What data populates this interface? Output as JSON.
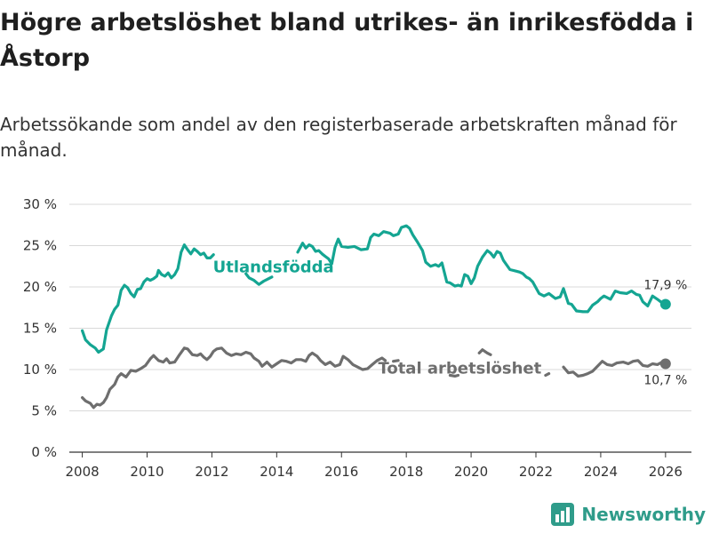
{
  "header": {
    "title": "Högre arbetslöshet bland utrikes- än inrikesfödda i Åstorp",
    "subtitle": "Arbetssökande som andel av den registerbaserade arbetskraften månad för månad."
  },
  "brand": {
    "name": "Newsworthy",
    "icon": "bar-chart-icon",
    "color": "#2f9c8a"
  },
  "chart_data": {
    "type": "line",
    "title": "Högre arbetslöshet bland utrikes- än inrikesfödda i Åstorp",
    "subtitle": "Arbetssökande som andel av den registerbaserade arbetskraften månad för månad.",
    "xlabel": "",
    "ylabel": "",
    "xlim": [
      2007.6,
      2026.8
    ],
    "ylim": [
      0,
      30
    ],
    "x_ticks": [
      2008,
      2010,
      2012,
      2014,
      2016,
      2018,
      2020,
      2022,
      2024,
      2026
    ],
    "x_tick_labels": [
      "2008",
      "2010",
      "2012",
      "2014",
      "2016",
      "2018",
      "2020",
      "2022",
      "2024",
      "2026"
    ],
    "y_ticks": [
      0,
      5,
      10,
      15,
      20,
      25,
      30
    ],
    "y_tick_labels": [
      "0 %",
      "5 %",
      "10 %",
      "15 %",
      "20 %",
      "25 %",
      "30 %"
    ],
    "grid": true,
    "series": [
      {
        "name": "Utlandsfödda",
        "label": "Utlandsfödda",
        "color": "#14a592",
        "end_label": "17,9 %",
        "points": [
          [
            2008.0,
            14.7
          ],
          [
            2008.1,
            13.6
          ],
          [
            2008.25,
            13.0
          ],
          [
            2008.4,
            12.6
          ],
          [
            2008.5,
            12.1
          ],
          [
            2008.65,
            12.5
          ],
          [
            2008.75,
            14.8
          ],
          [
            2008.9,
            16.5
          ],
          [
            2009.0,
            17.3
          ],
          [
            2009.1,
            17.8
          ],
          [
            2009.2,
            19.6
          ],
          [
            2009.3,
            20.2
          ],
          [
            2009.4,
            19.9
          ],
          [
            2009.5,
            19.2
          ],
          [
            2009.6,
            18.8
          ],
          [
            2009.7,
            19.7
          ],
          [
            2009.8,
            19.8
          ],
          [
            2009.9,
            20.6
          ],
          [
            2010.0,
            21.0
          ],
          [
            2010.1,
            20.8
          ],
          [
            2010.2,
            21.0
          ],
          [
            2010.3,
            21.3
          ],
          [
            2010.35,
            22.0
          ],
          [
            2010.45,
            21.5
          ],
          [
            2010.55,
            21.3
          ],
          [
            2010.65,
            21.7
          ],
          [
            2010.75,
            21.1
          ],
          [
            2010.85,
            21.5
          ],
          [
            2010.95,
            22.2
          ],
          [
            2011.05,
            24.2
          ],
          [
            2011.15,
            25.1
          ],
          [
            2011.25,
            24.5
          ],
          [
            2011.35,
            24.0
          ],
          [
            2011.45,
            24.6
          ],
          [
            2011.55,
            24.3
          ],
          [
            2011.65,
            23.9
          ],
          [
            2011.75,
            24.1
          ],
          [
            2011.85,
            23.5
          ],
          [
            2011.95,
            23.5
          ],
          [
            2012.05,
            23.9
          ]
        ],
        "points_b": [
          [
            2013.05,
            21.6
          ],
          [
            2013.15,
            21.1
          ],
          [
            2013.3,
            20.8
          ],
          [
            2013.45,
            20.3
          ],
          [
            2013.6,
            20.7
          ],
          [
            2013.75,
            21.0
          ],
          [
            2013.85,
            21.2
          ]
        ],
        "points_c": [
          [
            2014.65,
            24.2
          ],
          [
            2014.8,
            25.3
          ],
          [
            2014.9,
            24.7
          ],
          [
            2015.0,
            25.1
          ],
          [
            2015.1,
            24.9
          ],
          [
            2015.2,
            24.3
          ],
          [
            2015.3,
            24.4
          ],
          [
            2015.4,
            24.0
          ],
          [
            2015.5,
            23.7
          ],
          [
            2015.6,
            23.4
          ],
          [
            2015.7,
            22.8
          ],
          [
            2015.8,
            24.8
          ],
          [
            2015.9,
            25.8
          ],
          [
            2016.0,
            24.9
          ],
          [
            2016.2,
            24.8
          ],
          [
            2016.4,
            24.9
          ],
          [
            2016.6,
            24.5
          ],
          [
            2016.8,
            24.6
          ],
          [
            2016.9,
            26.0
          ],
          [
            2017.0,
            26.4
          ],
          [
            2017.15,
            26.2
          ],
          [
            2017.3,
            26.7
          ],
          [
            2017.5,
            26.5
          ],
          [
            2017.6,
            26.2
          ],
          [
            2017.75,
            26.4
          ],
          [
            2017.85,
            27.2
          ],
          [
            2018.0,
            27.4
          ],
          [
            2018.1,
            27.1
          ],
          [
            2018.2,
            26.3
          ],
          [
            2018.35,
            25.4
          ],
          [
            2018.5,
            24.4
          ],
          [
            2018.6,
            23.0
          ],
          [
            2018.75,
            22.5
          ],
          [
            2018.9,
            22.7
          ],
          [
            2019.0,
            22.5
          ],
          [
            2019.1,
            22.9
          ],
          [
            2019.25,
            20.6
          ],
          [
            2019.35,
            20.5
          ],
          [
            2019.5,
            20.1
          ],
          [
            2019.6,
            20.2
          ],
          [
            2019.7,
            20.1
          ],
          [
            2019.8,
            21.5
          ],
          [
            2019.9,
            21.3
          ],
          [
            2020.0,
            20.4
          ],
          [
            2020.1,
            21.1
          ],
          [
            2020.2,
            22.5
          ],
          [
            2020.35,
            23.6
          ],
          [
            2020.5,
            24.4
          ],
          [
            2020.6,
            24.1
          ],
          [
            2020.7,
            23.6
          ],
          [
            2020.8,
            24.3
          ],
          [
            2020.9,
            24.1
          ],
          [
            2021.0,
            23.2
          ],
          [
            2021.2,
            22.1
          ],
          [
            2021.4,
            21.9
          ],
          [
            2021.5,
            21.8
          ],
          [
            2021.6,
            21.6
          ],
          [
            2021.7,
            21.2
          ],
          [
            2021.8,
            21.0
          ],
          [
            2021.9,
            20.6
          ],
          [
            2022.0,
            19.9
          ],
          [
            2022.1,
            19.2
          ],
          [
            2022.25,
            18.9
          ],
          [
            2022.4,
            19.2
          ],
          [
            2022.5,
            18.9
          ],
          [
            2022.6,
            18.6
          ],
          [
            2022.75,
            18.8
          ],
          [
            2022.85,
            19.8
          ],
          [
            2023.0,
            18.0
          ],
          [
            2023.1,
            17.9
          ],
          [
            2023.25,
            17.1
          ],
          [
            2023.45,
            17.0
          ],
          [
            2023.6,
            17.0
          ],
          [
            2023.75,
            17.8
          ],
          [
            2023.9,
            18.2
          ],
          [
            2024.0,
            18.6
          ],
          [
            2024.1,
            18.9
          ],
          [
            2024.3,
            18.5
          ],
          [
            2024.45,
            19.5
          ],
          [
            2024.6,
            19.3
          ],
          [
            2024.8,
            19.2
          ],
          [
            2024.95,
            19.5
          ],
          [
            2025.1,
            19.1
          ],
          [
            2025.2,
            19.0
          ],
          [
            2025.3,
            18.2
          ],
          [
            2025.45,
            17.7
          ],
          [
            2025.6,
            18.9
          ],
          [
            2025.75,
            18.5
          ],
          [
            2025.85,
            18.2
          ],
          [
            2026.0,
            17.9
          ]
        ]
      },
      {
        "name": "Total arbetslöshet",
        "label": "Total arbetslöshet",
        "color": "#6e6e6e",
        "end_label": "10,7 %",
        "points": [
          [
            2008.0,
            6.6
          ],
          [
            2008.1,
            6.2
          ],
          [
            2008.25,
            5.9
          ],
          [
            2008.35,
            5.4
          ],
          [
            2008.45,
            5.8
          ],
          [
            2008.55,
            5.7
          ],
          [
            2008.65,
            6.0
          ],
          [
            2008.75,
            6.6
          ],
          [
            2008.85,
            7.6
          ],
          [
            2009.0,
            8.2
          ],
          [
            2009.1,
            9.1
          ],
          [
            2009.2,
            9.5
          ],
          [
            2009.35,
            9.1
          ],
          [
            2009.5,
            9.9
          ],
          [
            2009.65,
            9.8
          ],
          [
            2009.8,
            10.1
          ],
          [
            2009.95,
            10.5
          ],
          [
            2010.1,
            11.3
          ],
          [
            2010.2,
            11.7
          ],
          [
            2010.35,
            11.1
          ],
          [
            2010.5,
            10.9
          ],
          [
            2010.6,
            11.3
          ],
          [
            2010.7,
            10.8
          ],
          [
            2010.85,
            10.9
          ],
          [
            2011.0,
            11.8
          ],
          [
            2011.15,
            12.6
          ],
          [
            2011.25,
            12.5
          ],
          [
            2011.4,
            11.8
          ],
          [
            2011.55,
            11.7
          ],
          [
            2011.65,
            11.9
          ],
          [
            2011.75,
            11.5
          ],
          [
            2011.85,
            11.2
          ],
          [
            2011.95,
            11.6
          ],
          [
            2012.05,
            12.2
          ],
          [
            2012.15,
            12.5
          ],
          [
            2012.3,
            12.6
          ],
          [
            2012.45,
            12.0
          ],
          [
            2012.6,
            11.7
          ],
          [
            2012.75,
            11.9
          ],
          [
            2012.9,
            11.8
          ],
          [
            2013.05,
            12.1
          ],
          [
            2013.2,
            11.9
          ],
          [
            2013.3,
            11.4
          ],
          [
            2013.45,
            11.0
          ],
          [
            2013.55,
            10.4
          ],
          [
            2013.7,
            10.9
          ],
          [
            2013.85,
            10.3
          ],
          [
            2014.0,
            10.7
          ],
          [
            2014.15,
            11.1
          ],
          [
            2014.3,
            11.0
          ],
          [
            2014.45,
            10.8
          ],
          [
            2014.6,
            11.2
          ],
          [
            2014.75,
            11.2
          ],
          [
            2014.9,
            11.0
          ],
          [
            2015.0,
            11.7
          ],
          [
            2015.1,
            12.0
          ],
          [
            2015.25,
            11.6
          ],
          [
            2015.35,
            11.1
          ],
          [
            2015.5,
            10.6
          ],
          [
            2015.65,
            10.9
          ],
          [
            2015.8,
            10.4
          ],
          [
            2015.95,
            10.6
          ],
          [
            2016.05,
            11.6
          ],
          [
            2016.2,
            11.2
          ],
          [
            2016.35,
            10.6
          ],
          [
            2016.5,
            10.3
          ],
          [
            2016.65,
            10.0
          ],
          [
            2016.8,
            10.1
          ],
          [
            2016.95,
            10.6
          ],
          [
            2017.1,
            11.1
          ],
          [
            2017.25,
            11.4
          ],
          [
            2017.35,
            11.1
          ]
        ],
        "points_b": [
          [
            2017.6,
            11.0
          ],
          [
            2017.75,
            11.1
          ]
        ],
        "points_c": [
          [
            2019.35,
            9.3
          ],
          [
            2019.5,
            9.2
          ],
          [
            2019.6,
            9.3
          ]
        ],
        "points_d": [
          [
            2020.25,
            12.0
          ],
          [
            2020.35,
            12.4
          ],
          [
            2020.5,
            12.0
          ],
          [
            2020.6,
            11.8
          ]
        ],
        "points_e": [
          [
            2022.3,
            9.3
          ],
          [
            2022.4,
            9.5
          ]
        ],
        "points_f": [
          [
            2022.85,
            10.3
          ],
          [
            2023.0,
            9.6
          ],
          [
            2023.15,
            9.7
          ],
          [
            2023.3,
            9.2
          ],
          [
            2023.45,
            9.3
          ],
          [
            2023.6,
            9.5
          ],
          [
            2023.75,
            9.8
          ],
          [
            2023.9,
            10.4
          ],
          [
            2024.05,
            11.0
          ],
          [
            2024.2,
            10.6
          ],
          [
            2024.35,
            10.5
          ],
          [
            2024.5,
            10.8
          ],
          [
            2024.7,
            10.9
          ],
          [
            2024.85,
            10.7
          ],
          [
            2025.0,
            11.0
          ],
          [
            2025.15,
            11.1
          ],
          [
            2025.3,
            10.5
          ],
          [
            2025.45,
            10.4
          ],
          [
            2025.6,
            10.7
          ],
          [
            2025.75,
            10.6
          ],
          [
            2025.9,
            10.9
          ],
          [
            2026.0,
            10.7
          ]
        ]
      }
    ]
  }
}
